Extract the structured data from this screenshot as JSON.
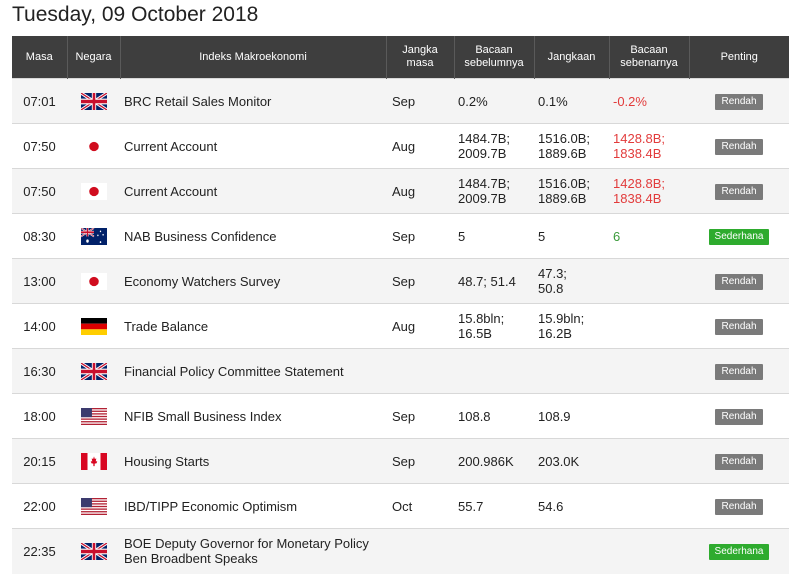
{
  "page": {
    "title": "Tuesday, 09 October 2018"
  },
  "columns": {
    "time": "Masa",
    "country": "Negara",
    "indicator": "Indeks Makroekonomi",
    "period": "Jangka masa",
    "previous": "Bacaan sebelumnya",
    "forecast": "Jangkaan",
    "actual": "Bacaan sebenarnya",
    "importance": "Penting"
  },
  "colors": {
    "header_bg": "#3e3e3e",
    "row_alt": "#f4f4f4",
    "negative": "#e23b3b",
    "positive": "#3a9a3a",
    "badge_low": "#7a7a7a",
    "badge_mid": "#2eab2e"
  },
  "rows": [
    {
      "time": "07:01",
      "flag": "uk-flag-icon",
      "indicator": "BRC Retail Sales Monitor",
      "period": "Sep",
      "previous": [
        "0.2%"
      ],
      "forecast": [
        "0.1%"
      ],
      "actual": [
        "-0.2%"
      ],
      "actual_tone": "neg",
      "importance": "Rendah",
      "imp_level": "low"
    },
    {
      "time": "07:50",
      "flag": "japan-flag-icon",
      "indicator": "Current Account",
      "period": "Aug",
      "previous": [
        "1484.7B;",
        "2009.7B"
      ],
      "forecast": [
        "1516.0B;",
        "1889.6B"
      ],
      "actual": [
        "1428.8B;",
        "1838.4B"
      ],
      "actual_tone": "neg",
      "importance": "Rendah",
      "imp_level": "low"
    },
    {
      "time": "07:50",
      "flag": "japan-flag-icon",
      "indicator": "Current Account",
      "period": "Aug",
      "previous": [
        "1484.7B;",
        "2009.7B"
      ],
      "forecast": [
        "1516.0B;",
        "1889.6B"
      ],
      "actual": [
        "1428.8B;",
        "1838.4B"
      ],
      "actual_tone": "neg",
      "importance": "Rendah",
      "imp_level": "low"
    },
    {
      "time": "08:30",
      "flag": "australia-flag-icon",
      "indicator": "NAB Business Confidence",
      "period": "Sep",
      "previous": [
        "5"
      ],
      "forecast": [
        "5"
      ],
      "actual": [
        "6"
      ],
      "actual_tone": "pos",
      "importance": "Sederhana",
      "imp_level": "mid"
    },
    {
      "time": "13:00",
      "flag": "japan-flag-icon",
      "indicator": "Economy Watchers Survey",
      "period": "Sep",
      "previous": [
        "48.7; 51.4"
      ],
      "forecast": [
        "47.3;",
        "50.8"
      ],
      "actual": [],
      "actual_tone": "",
      "importance": "Rendah",
      "imp_level": "low"
    },
    {
      "time": "14:00",
      "flag": "germany-flag-icon",
      "indicator": "Trade Balance",
      "period": "Aug",
      "previous": [
        "15.8bln;",
        "16.5B"
      ],
      "forecast": [
        "15.9bln;",
        "16.2B"
      ],
      "actual": [],
      "actual_tone": "",
      "importance": "Rendah",
      "imp_level": "low"
    },
    {
      "time": "16:30",
      "flag": "uk-flag-icon",
      "indicator": "Financial Policy Committee Statement",
      "period": "",
      "previous": [],
      "forecast": [],
      "actual": [],
      "actual_tone": "",
      "importance": "Rendah",
      "imp_level": "low"
    },
    {
      "time": "18:00",
      "flag": "usa-flag-icon",
      "indicator": "NFIB Small Business Index",
      "period": "Sep",
      "previous": [
        "108.8"
      ],
      "forecast": [
        "108.9"
      ],
      "actual": [],
      "actual_tone": "",
      "importance": "Rendah",
      "imp_level": "low"
    },
    {
      "time": "20:15",
      "flag": "canada-flag-icon",
      "indicator": "Housing Starts",
      "period": "Sep",
      "previous": [
        "200.986K"
      ],
      "forecast": [
        "203.0K"
      ],
      "actual": [],
      "actual_tone": "",
      "importance": "Rendah",
      "imp_level": "low"
    },
    {
      "time": "22:00",
      "flag": "usa-flag-icon",
      "indicator": "IBD/TIPP Economic Optimism",
      "period": "Oct",
      "previous": [
        "55.7"
      ],
      "forecast": [
        "54.6"
      ],
      "actual": [],
      "actual_tone": "",
      "importance": "Rendah",
      "imp_level": "low"
    },
    {
      "time": "22:35",
      "flag": "uk-flag-icon",
      "indicator": "BOE Deputy Governor for Monetary Policy Ben Broadbent Speaks",
      "period": "",
      "previous": [],
      "forecast": [],
      "actual": [],
      "actual_tone": "",
      "importance": "Sederhana",
      "imp_level": "mid"
    }
  ]
}
